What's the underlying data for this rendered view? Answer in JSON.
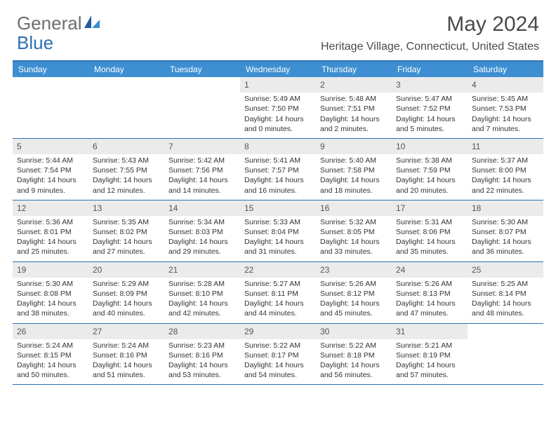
{
  "brand": {
    "word1": "General",
    "word2": "Blue"
  },
  "title": {
    "month_year": "May 2024",
    "location": "Heritage Village, Connecticut, United States"
  },
  "colors": {
    "header_bar": "#3d8fd1",
    "rule": "#2d6fb5",
    "daynum_bg": "#ebebeb",
    "text": "#333333",
    "title_text": "#4a4a4a",
    "logo_gray": "#6e6e6e",
    "logo_blue": "#2d6fb5",
    "background": "#ffffff"
  },
  "day_headers": [
    "Sunday",
    "Monday",
    "Tuesday",
    "Wednesday",
    "Thursday",
    "Friday",
    "Saturday"
  ],
  "weeks": [
    [
      {
        "empty": true
      },
      {
        "empty": true
      },
      {
        "empty": true
      },
      {
        "day": "1",
        "sunrise": "Sunrise: 5:49 AM",
        "sunset": "Sunset: 7:50 PM",
        "dl1": "Daylight: 14 hours",
        "dl2": "and 0 minutes."
      },
      {
        "day": "2",
        "sunrise": "Sunrise: 5:48 AM",
        "sunset": "Sunset: 7:51 PM",
        "dl1": "Daylight: 14 hours",
        "dl2": "and 2 minutes."
      },
      {
        "day": "3",
        "sunrise": "Sunrise: 5:47 AM",
        "sunset": "Sunset: 7:52 PM",
        "dl1": "Daylight: 14 hours",
        "dl2": "and 5 minutes."
      },
      {
        "day": "4",
        "sunrise": "Sunrise: 5:45 AM",
        "sunset": "Sunset: 7:53 PM",
        "dl1": "Daylight: 14 hours",
        "dl2": "and 7 minutes."
      }
    ],
    [
      {
        "day": "5",
        "sunrise": "Sunrise: 5:44 AM",
        "sunset": "Sunset: 7:54 PM",
        "dl1": "Daylight: 14 hours",
        "dl2": "and 9 minutes."
      },
      {
        "day": "6",
        "sunrise": "Sunrise: 5:43 AM",
        "sunset": "Sunset: 7:55 PM",
        "dl1": "Daylight: 14 hours",
        "dl2": "and 12 minutes."
      },
      {
        "day": "7",
        "sunrise": "Sunrise: 5:42 AM",
        "sunset": "Sunset: 7:56 PM",
        "dl1": "Daylight: 14 hours",
        "dl2": "and 14 minutes."
      },
      {
        "day": "8",
        "sunrise": "Sunrise: 5:41 AM",
        "sunset": "Sunset: 7:57 PM",
        "dl1": "Daylight: 14 hours",
        "dl2": "and 16 minutes."
      },
      {
        "day": "9",
        "sunrise": "Sunrise: 5:40 AM",
        "sunset": "Sunset: 7:58 PM",
        "dl1": "Daylight: 14 hours",
        "dl2": "and 18 minutes."
      },
      {
        "day": "10",
        "sunrise": "Sunrise: 5:38 AM",
        "sunset": "Sunset: 7:59 PM",
        "dl1": "Daylight: 14 hours",
        "dl2": "and 20 minutes."
      },
      {
        "day": "11",
        "sunrise": "Sunrise: 5:37 AM",
        "sunset": "Sunset: 8:00 PM",
        "dl1": "Daylight: 14 hours",
        "dl2": "and 22 minutes."
      }
    ],
    [
      {
        "day": "12",
        "sunrise": "Sunrise: 5:36 AM",
        "sunset": "Sunset: 8:01 PM",
        "dl1": "Daylight: 14 hours",
        "dl2": "and 25 minutes."
      },
      {
        "day": "13",
        "sunrise": "Sunrise: 5:35 AM",
        "sunset": "Sunset: 8:02 PM",
        "dl1": "Daylight: 14 hours",
        "dl2": "and 27 minutes."
      },
      {
        "day": "14",
        "sunrise": "Sunrise: 5:34 AM",
        "sunset": "Sunset: 8:03 PM",
        "dl1": "Daylight: 14 hours",
        "dl2": "and 29 minutes."
      },
      {
        "day": "15",
        "sunrise": "Sunrise: 5:33 AM",
        "sunset": "Sunset: 8:04 PM",
        "dl1": "Daylight: 14 hours",
        "dl2": "and 31 minutes."
      },
      {
        "day": "16",
        "sunrise": "Sunrise: 5:32 AM",
        "sunset": "Sunset: 8:05 PM",
        "dl1": "Daylight: 14 hours",
        "dl2": "and 33 minutes."
      },
      {
        "day": "17",
        "sunrise": "Sunrise: 5:31 AM",
        "sunset": "Sunset: 8:06 PM",
        "dl1": "Daylight: 14 hours",
        "dl2": "and 35 minutes."
      },
      {
        "day": "18",
        "sunrise": "Sunrise: 5:30 AM",
        "sunset": "Sunset: 8:07 PM",
        "dl1": "Daylight: 14 hours",
        "dl2": "and 36 minutes."
      }
    ],
    [
      {
        "day": "19",
        "sunrise": "Sunrise: 5:30 AM",
        "sunset": "Sunset: 8:08 PM",
        "dl1": "Daylight: 14 hours",
        "dl2": "and 38 minutes."
      },
      {
        "day": "20",
        "sunrise": "Sunrise: 5:29 AM",
        "sunset": "Sunset: 8:09 PM",
        "dl1": "Daylight: 14 hours",
        "dl2": "and 40 minutes."
      },
      {
        "day": "21",
        "sunrise": "Sunrise: 5:28 AM",
        "sunset": "Sunset: 8:10 PM",
        "dl1": "Daylight: 14 hours",
        "dl2": "and 42 minutes."
      },
      {
        "day": "22",
        "sunrise": "Sunrise: 5:27 AM",
        "sunset": "Sunset: 8:11 PM",
        "dl1": "Daylight: 14 hours",
        "dl2": "and 44 minutes."
      },
      {
        "day": "23",
        "sunrise": "Sunrise: 5:26 AM",
        "sunset": "Sunset: 8:12 PM",
        "dl1": "Daylight: 14 hours",
        "dl2": "and 45 minutes."
      },
      {
        "day": "24",
        "sunrise": "Sunrise: 5:26 AM",
        "sunset": "Sunset: 8:13 PM",
        "dl1": "Daylight: 14 hours",
        "dl2": "and 47 minutes."
      },
      {
        "day": "25",
        "sunrise": "Sunrise: 5:25 AM",
        "sunset": "Sunset: 8:14 PM",
        "dl1": "Daylight: 14 hours",
        "dl2": "and 48 minutes."
      }
    ],
    [
      {
        "day": "26",
        "sunrise": "Sunrise: 5:24 AM",
        "sunset": "Sunset: 8:15 PM",
        "dl1": "Daylight: 14 hours",
        "dl2": "and 50 minutes."
      },
      {
        "day": "27",
        "sunrise": "Sunrise: 5:24 AM",
        "sunset": "Sunset: 8:16 PM",
        "dl1": "Daylight: 14 hours",
        "dl2": "and 51 minutes."
      },
      {
        "day": "28",
        "sunrise": "Sunrise: 5:23 AM",
        "sunset": "Sunset: 8:16 PM",
        "dl1": "Daylight: 14 hours",
        "dl2": "and 53 minutes."
      },
      {
        "day": "29",
        "sunrise": "Sunrise: 5:22 AM",
        "sunset": "Sunset: 8:17 PM",
        "dl1": "Daylight: 14 hours",
        "dl2": "and 54 minutes."
      },
      {
        "day": "30",
        "sunrise": "Sunrise: 5:22 AM",
        "sunset": "Sunset: 8:18 PM",
        "dl1": "Daylight: 14 hours",
        "dl2": "and 56 minutes."
      },
      {
        "day": "31",
        "sunrise": "Sunrise: 5:21 AM",
        "sunset": "Sunset: 8:19 PM",
        "dl1": "Daylight: 14 hours",
        "dl2": "and 57 minutes."
      },
      {
        "empty": true
      }
    ]
  ]
}
